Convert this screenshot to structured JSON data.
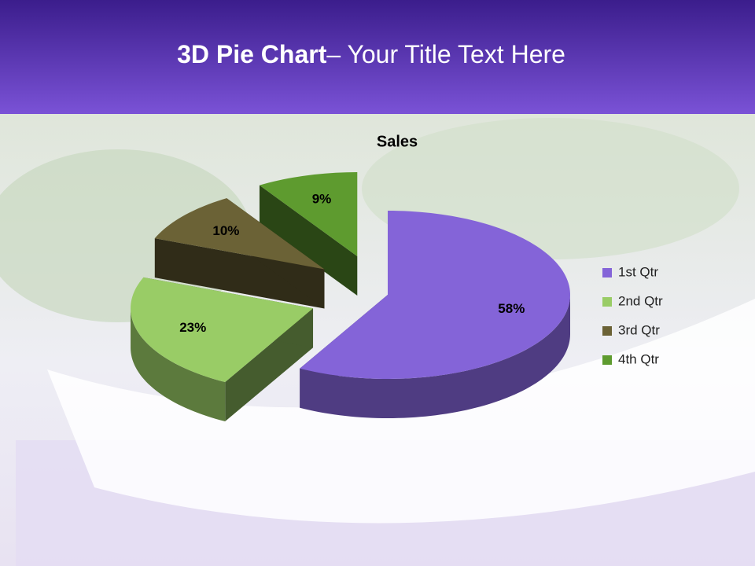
{
  "slide": {
    "heading_bold": "3D Pie Chart",
    "heading_rest": "– Your Title Text Here"
  },
  "chart_data": {
    "type": "pie3d",
    "title": "Sales",
    "categories": [
      "1st Qtr",
      "2nd Qtr",
      "3rd Qtr",
      "4th Qtr"
    ],
    "values": [
      58,
      23,
      10,
      9
    ],
    "value_labels": [
      "58%",
      "23%",
      "10%",
      "9%"
    ],
    "colors": [
      "#8464d8",
      "#99cc66",
      "#6b6236",
      "#5e9b2f"
    ],
    "legend": "right"
  }
}
